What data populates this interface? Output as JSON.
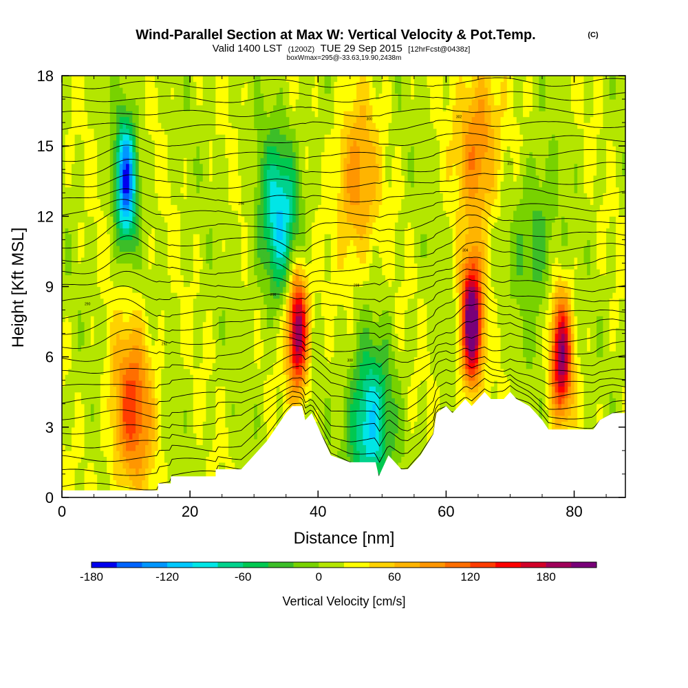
{
  "title": {
    "main": "Wind-Parallel Section at Max W: Vertical Velocity & Pot.Temp.",
    "copyright": "(C)",
    "valid_prefix": "Valid 1400 LST",
    "valid_utc": "(1200Z)",
    "valid_date": "TUE 29 Sep 2015",
    "forecast": "[12hrFcst@0438z]",
    "box_info": "boxWmax=295@-33.63,19.90,2438m"
  },
  "chart_data": {
    "type": "heatmap",
    "xlabel": "Distance [nm]",
    "ylabel": "Height [Kft MSL]",
    "xlim": [
      0,
      88
    ],
    "ylim": [
      0,
      18
    ],
    "xticks": [
      0,
      20,
      40,
      60,
      80
    ],
    "yticks": [
      0,
      3,
      6,
      9,
      12,
      15,
      18
    ],
    "colorbar": {
      "title": "Vertical Velocity [cm/s]",
      "min": -180,
      "max": 220,
      "step": 20,
      "tick_values": [
        -180,
        -120,
        -60,
        0,
        60,
        120,
        180
      ],
      "tick_labels": [
        "-180",
        "-120",
        "-60",
        "0",
        "60",
        "120",
        "180"
      ],
      "colors": [
        "#0000ee",
        "#0064ff",
        "#0096ff",
        "#00c8ff",
        "#00e6e6",
        "#00d28c",
        "#00c850",
        "#3cbe28",
        "#78d200",
        "#b4e600",
        "#ffff00",
        "#ffd200",
        "#ffb400",
        "#ff9600",
        "#ff6e00",
        "#ff3c00",
        "#ff0000",
        "#d20028",
        "#a0005a",
        "#780078"
      ]
    },
    "features": [
      {
        "name": "downdraft",
        "x": 10,
        "y": 13.5,
        "w_cms": -170
      },
      {
        "name": "updraft",
        "x": 11,
        "y": 3.8,
        "w_cms": 110
      },
      {
        "name": "downdraft",
        "x": 34,
        "y": 12,
        "w_cms": -110
      },
      {
        "name": "updraft",
        "x": 36.8,
        "y": 7.2,
        "w_cms": 200
      },
      {
        "name": "updraft",
        "x": 46,
        "y": 13.5,
        "w_cms": 80
      },
      {
        "name": "downdraft",
        "x": 48,
        "y": 3,
        "w_cms": -120
      },
      {
        "name": "updraft",
        "x": 64,
        "y": 7.5,
        "w_cms": 230
      },
      {
        "name": "updraft",
        "x": 65,
        "y": 15,
        "w_cms": 90
      },
      {
        "name": "updraft",
        "x": 78,
        "y": 6,
        "w_cms": 180
      },
      {
        "name": "downdraft",
        "x": 74,
        "y": 11,
        "w_cms": -50
      }
    ],
    "terrain_kft": [
      [
        0,
        0.3
      ],
      [
        15,
        0.3
      ],
      [
        15,
        0.6
      ],
      [
        17,
        0.6
      ],
      [
        17,
        0.9
      ],
      [
        24,
        0.9
      ],
      [
        24,
        1.2
      ],
      [
        28,
        1.2
      ],
      [
        30,
        1.8
      ],
      [
        32,
        2.4
      ],
      [
        33.5,
        3
      ],
      [
        35,
        3.6
      ],
      [
        36,
        3.9
      ],
      [
        37.5,
        3.9
      ],
      [
        38,
        3.3
      ],
      [
        39,
        3.6
      ],
      [
        40,
        3
      ],
      [
        41,
        2.4
      ],
      [
        42,
        1.8
      ],
      [
        45,
        1.5
      ],
      [
        49,
        1.5
      ],
      [
        49.5,
        0.9
      ],
      [
        50,
        1.2
      ],
      [
        51,
        1.8
      ],
      [
        52,
        1.5
      ],
      [
        53,
        1.2
      ],
      [
        54,
        1.2
      ],
      [
        56,
        1.8
      ],
      [
        58,
        2.7
      ],
      [
        58.5,
        3.6
      ],
      [
        60,
        3.9
      ],
      [
        61,
        3.6
      ],
      [
        62,
        3.9
      ],
      [
        63,
        4.2
      ],
      [
        64,
        3.9
      ],
      [
        65,
        4.2
      ],
      [
        66,
        4.5
      ],
      [
        67,
        4.2
      ],
      [
        69,
        4.2
      ],
      [
        70,
        4.5
      ],
      [
        71,
        4.2
      ],
      [
        73,
        3.9
      ],
      [
        74,
        3.6
      ],
      [
        75,
        3.3
      ],
      [
        76,
        2.9
      ],
      [
        83,
        2.9
      ],
      [
        84,
        3.3
      ],
      [
        86,
        3.6
      ],
      [
        88,
        3.6
      ]
    ],
    "theta_labels": [
      "290",
      "292",
      "294",
      "296",
      "298",
      "300",
      "302",
      "304",
      "306",
      "308",
      "310"
    ]
  }
}
